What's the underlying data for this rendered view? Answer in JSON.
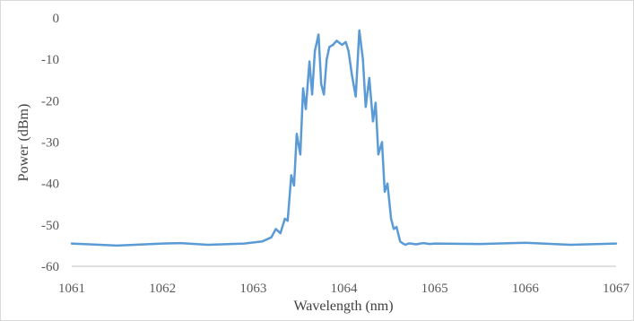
{
  "chart_data": {
    "type": "line",
    "title": "",
    "xlabel": "Wavelength (nm)",
    "ylabel": "Power (dBm)",
    "xlim": [
      1061,
      1067
    ],
    "ylim": [
      -60,
      0
    ],
    "x_ticks": [
      1061,
      1062,
      1063,
      1064,
      1065,
      1066,
      1067
    ],
    "y_ticks": [
      0,
      -10,
      -20,
      -30,
      -40,
      -50,
      -60
    ],
    "grid": false,
    "legend": "none",
    "line_color": "#5b9bd5",
    "series": [
      {
        "x": [
          1061.0,
          1061.5,
          1062.0,
          1062.2,
          1062.5,
          1062.9,
          1063.1,
          1063.2,
          1063.25,
          1063.3,
          1063.35,
          1063.38,
          1063.42,
          1063.45,
          1063.48,
          1063.52,
          1063.55,
          1063.58,
          1063.62,
          1063.65,
          1063.68,
          1063.72,
          1063.75,
          1063.78,
          1063.81,
          1063.84,
          1063.88,
          1063.92,
          1063.95,
          1063.98,
          1064.02,
          1064.05,
          1064.09,
          1064.13,
          1064.17,
          1064.21,
          1064.24,
          1064.28,
          1064.32,
          1064.35,
          1064.38,
          1064.42,
          1064.45,
          1064.48,
          1064.52,
          1064.55,
          1064.58,
          1064.62,
          1064.65,
          1064.68,
          1064.71,
          1064.74,
          1064.77,
          1064.8,
          1064.84,
          1064.88,
          1064.91,
          1064.95,
          1065.0,
          1065.5,
          1066.0,
          1066.5,
          1067.0
        ],
        "y": [
          -54.5,
          -55.0,
          -54.5,
          -54.4,
          -54.8,
          -54.5,
          -54.0,
          -53.0,
          -51.0,
          -52.0,
          -48.5,
          -49.0,
          -38.0,
          -40.5,
          -28.0,
          -33.0,
          -17.0,
          -22.0,
          -10.5,
          -18.5,
          -8.0,
          -4.0,
          -16.0,
          -18.5,
          -10.0,
          -7.0,
          -6.5,
          -5.5,
          -6.0,
          -6.5,
          -5.8,
          -8.0,
          -14.0,
          -19.0,
          -3.0,
          -10.0,
          -21.5,
          -14.5,
          -25.0,
          -20.5,
          -33.0,
          -30.0,
          -42.0,
          -40.0,
          -48.5,
          -51.0,
          -50.5,
          -54.0,
          -54.5,
          -54.8,
          -54.5,
          -54.5,
          -54.6,
          -54.7,
          -54.5,
          -54.4,
          -54.5,
          -54.6,
          -54.5,
          -54.6,
          -54.3,
          -54.8,
          -54.5
        ]
      }
    ]
  }
}
